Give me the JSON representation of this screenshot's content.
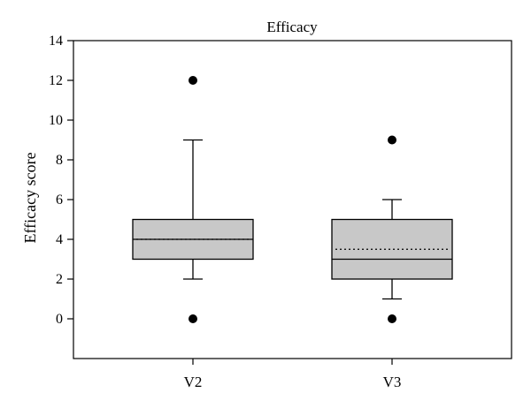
{
  "chart_data": {
    "type": "box",
    "title": "Efficacy",
    "xlabel": "",
    "ylabel": "Efficacy score",
    "ylim": [
      -2,
      14
    ],
    "yticks": [
      0,
      2,
      4,
      6,
      8,
      10,
      12,
      14
    ],
    "grid": false,
    "categories": [
      "V2",
      "V3"
    ],
    "boxes": [
      {
        "category": "V2",
        "whisker_low": 2,
        "q1": 3,
        "median": 4,
        "mean": 4,
        "q3": 5,
        "whisker_high": 9,
        "outliers": [
          0,
          12
        ]
      },
      {
        "category": "V3",
        "whisker_low": 1,
        "q1": 2,
        "median": 3,
        "mean": 3.5,
        "q3": 5,
        "whisker_high": 6,
        "outliers": [
          0,
          9
        ]
      }
    ],
    "box_color": "#c8c8c8",
    "line_color": "#000000"
  }
}
